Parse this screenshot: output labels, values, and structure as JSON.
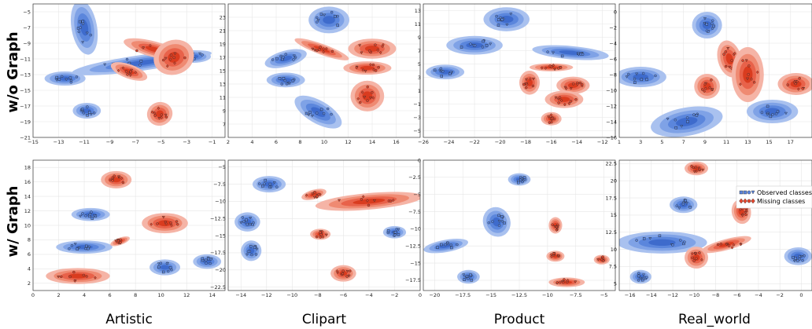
{
  "figure": {
    "row_labels": [
      "w/o Graph",
      "w/ Graph"
    ],
    "column_labels": [
      "Artistic",
      "Clipart",
      "Product",
      "Real_world"
    ],
    "legend": {
      "observed": "Observed classes",
      "missing": "Missing classes"
    },
    "colors": {
      "observed": "#4a78d8",
      "missing": "#e4472e",
      "grid": "#e6e6e6"
    }
  },
  "chart_data": [
    {
      "type": "scatter",
      "title": "",
      "row": "w/o Graph",
      "column": "Artistic",
      "xlim": [
        -15,
        0
      ],
      "ylim": [
        -21,
        -4
      ],
      "xticks": [
        -15,
        -13,
        -11,
        -9,
        -7,
        -5,
        -3,
        -1
      ],
      "yticks": [
        -21,
        -19,
        -17,
        -15,
        -13,
        -11,
        -9,
        -7,
        -5
      ],
      "series": [
        {
          "class": "observed",
          "clusters": [
            {
              "cx": -11,
              "cy": -7,
              "sx": 1.0,
              "sy": 3.5,
              "rot": -10
            },
            {
              "cx": -12.5,
              "cy": -13.5,
              "sx": 1.6,
              "sy": 0.9,
              "rot": 0
            },
            {
              "cx": -10.8,
              "cy": -17.6,
              "sx": 1.1,
              "sy": 1.0,
              "rot": 0
            },
            {
              "cx": -6.5,
              "cy": -11.5,
              "sx": 5.5,
              "sy": 1.0,
              "rot": -8
            },
            {
              "cx": -2.5,
              "cy": -10.7,
              "sx": 1.4,
              "sy": 0.8,
              "rot": 0
            }
          ]
        },
        {
          "class": "missing",
          "clusters": [
            {
              "cx": -5.5,
              "cy": -9.8,
              "sx": 2.5,
              "sy": 1.0,
              "rot": 15
            },
            {
              "cx": -7.5,
              "cy": -12.6,
              "sx": 1.5,
              "sy": 0.9,
              "rot": 20
            },
            {
              "cx": -4.0,
              "cy": -10.8,
              "sx": 1.6,
              "sy": 2.2,
              "rot": -20
            },
            {
              "cx": -5.1,
              "cy": -18.0,
              "sx": 1.0,
              "sy": 1.5,
              "rot": -15
            }
          ]
        }
      ]
    },
    {
      "type": "scatter",
      "title": "",
      "row": "w/o Graph",
      "column": "Clipart",
      "xlim": [
        2,
        18
      ],
      "ylim": [
        5,
        25
      ],
      "xticks": [
        2,
        4,
        6,
        8,
        10,
        12,
        14,
        16
      ],
      "yticks": [
        7,
        9,
        11,
        13,
        15,
        17,
        19,
        21,
        23
      ],
      "series": [
        {
          "class": "observed",
          "clusters": [
            {
              "cx": 10.4,
              "cy": 22.6,
              "sx": 1.7,
              "sy": 2.0,
              "rot": 0
            },
            {
              "cx": 6.8,
              "cy": 16.8,
              "sx": 1.8,
              "sy": 1.2,
              "rot": -15
            },
            {
              "cx": 6.8,
              "cy": 13.6,
              "sx": 1.6,
              "sy": 1.1,
              "rot": 0
            },
            {
              "cx": 9.5,
              "cy": 8.8,
              "sx": 2.2,
              "sy": 1.7,
              "rot": 30
            }
          ]
        },
        {
          "class": "missing",
          "clusters": [
            {
              "cx": 9.8,
              "cy": 18.2,
              "sx": 2.4,
              "sy": 0.8,
              "rot": 20
            },
            {
              "cx": 14.0,
              "cy": 18.3,
              "sx": 2.0,
              "sy": 1.5,
              "rot": 0
            },
            {
              "cx": 13.6,
              "cy": 15.4,
              "sx": 2.0,
              "sy": 1.0,
              "rot": 0
            },
            {
              "cx": 13.6,
              "cy": 11.2,
              "sx": 1.4,
              "sy": 2.3,
              "rot": 0
            }
          ]
        }
      ]
    },
    {
      "type": "scatter",
      "title": "",
      "row": "w/o Graph",
      "column": "Product",
      "xlim": [
        -26,
        -11
      ],
      "ylim": [
        -6,
        14
      ],
      "xticks": [
        -26,
        -24,
        -22,
        -20,
        -18,
        -16,
        -14,
        -12
      ],
      "yticks": [
        -5,
        -3,
        -1,
        1,
        3,
        5,
        7,
        9,
        11,
        13
      ],
      "series": [
        {
          "class": "observed",
          "clusters": [
            {
              "cx": -19.5,
              "cy": 11.7,
              "sx": 1.8,
              "sy": 1.8,
              "rot": 0
            },
            {
              "cx": -22.0,
              "cy": 7.8,
              "sx": 2.2,
              "sy": 1.4,
              "rot": 0
            },
            {
              "cx": -24.3,
              "cy": 3.8,
              "sx": 1.5,
              "sy": 1.1,
              "rot": 0
            },
            {
              "cx": -14.5,
              "cy": 6.7,
              "sx": 3.0,
              "sy": 1.0,
              "rot": 5
            }
          ]
        },
        {
          "class": "missing",
          "clusters": [
            {
              "cx": -17.7,
              "cy": 2.2,
              "sx": 0.8,
              "sy": 1.8,
              "rot": 0
            },
            {
              "cx": -16.0,
              "cy": 4.5,
              "sx": 1.7,
              "sy": 0.6,
              "rot": 0
            },
            {
              "cx": -14.3,
              "cy": 1.8,
              "sx": 1.3,
              "sy": 1.3,
              "rot": 0
            },
            {
              "cx": -15.0,
              "cy": -0.3,
              "sx": 1.5,
              "sy": 1.3,
              "rot": 0
            },
            {
              "cx": -16.0,
              "cy": -3.2,
              "sx": 0.8,
              "sy": 1.0,
              "rot": 0
            }
          ]
        }
      ]
    },
    {
      "type": "scatter",
      "title": "",
      "row": "w/o Graph",
      "column": "Real_world",
      "xlim": [
        1,
        19
      ],
      "ylim": [
        -16,
        1
      ],
      "xticks": [
        1,
        3,
        5,
        7,
        9,
        11,
        13,
        15,
        17
      ],
      "yticks": [
        -16,
        -14,
        -12,
        -10,
        -8,
        -6,
        -4,
        -2,
        0
      ],
      "series": [
        {
          "class": "observed",
          "clusters": [
            {
              "cx": 9.2,
              "cy": -1.7,
              "sx": 1.4,
              "sy": 1.7,
              "rot": 0
            },
            {
              "cx": 3.0,
              "cy": -8.3,
              "sx": 2.4,
              "sy": 1.3,
              "rot": 0
            },
            {
              "cx": 7.3,
              "cy": -14.0,
              "sx": 3.4,
              "sy": 1.8,
              "rot": -10
            },
            {
              "cx": 15.3,
              "cy": -12.7,
              "sx": 2.4,
              "sy": 1.5,
              "rot": 0
            }
          ]
        },
        {
          "class": "missing",
          "clusters": [
            {
              "cx": 9.2,
              "cy": -9.5,
              "sx": 1.2,
              "sy": 1.6,
              "rot": 0
            },
            {
              "cx": 11.3,
              "cy": -6.0,
              "sx": 1.1,
              "sy": 2.4,
              "rot": -15
            },
            {
              "cx": 13.0,
              "cy": -8.0,
              "sx": 1.5,
              "sy": 3.5,
              "rot": 0
            },
            {
              "cx": 17.5,
              "cy": -9.2,
              "sx": 1.7,
              "sy": 1.4,
              "rot": 0
            }
          ]
        }
      ]
    },
    {
      "type": "scatter",
      "title": "",
      "row": "w/ Graph",
      "column": "Artistic",
      "xlim": [
        0,
        15
      ],
      "ylim": [
        1,
        19
      ],
      "xticks": [
        0,
        2,
        4,
        6,
        8,
        10,
        12,
        14
      ],
      "yticks": [
        2,
        4,
        6,
        8,
        10,
        12,
        14,
        16,
        18
      ],
      "series": [
        {
          "class": "observed",
          "clusters": [
            {
              "cx": 4.5,
              "cy": 11.5,
              "sx": 1.5,
              "sy": 0.9,
              "rot": 0
            },
            {
              "cx": 4.0,
              "cy": 7.0,
              "sx": 2.2,
              "sy": 0.9,
              "rot": 0
            },
            {
              "cx": 10.3,
              "cy": 4.2,
              "sx": 1.2,
              "sy": 1.1,
              "rot": 0
            },
            {
              "cx": 13.6,
              "cy": 5.0,
              "sx": 1.1,
              "sy": 1.0,
              "rot": 0
            }
          ]
        },
        {
          "class": "missing",
          "clusters": [
            {
              "cx": 6.5,
              "cy": 16.3,
              "sx": 1.2,
              "sy": 1.2,
              "rot": 0
            },
            {
              "cx": 10.3,
              "cy": 10.3,
              "sx": 1.8,
              "sy": 1.4,
              "rot": 0
            },
            {
              "cx": 6.8,
              "cy": 7.8,
              "sx": 0.8,
              "sy": 0.5,
              "rot": -20
            },
            {
              "cx": 3.5,
              "cy": 3.0,
              "sx": 2.5,
              "sy": 1.1,
              "rot": 0
            }
          ]
        }
      ]
    },
    {
      "type": "scatter",
      "title": "",
      "row": "w/ Graph",
      "column": "Clipart",
      "xlim": [
        -15,
        0
      ],
      "ylim": [
        -23,
        -4
      ],
      "xticks": [
        -14,
        -12,
        -10,
        -8,
        -6,
        -4,
        -2,
        0
      ],
      "yticks": [
        -22.5,
        -20.0,
        -17.5,
        -15.0,
        -12.5,
        -10.0,
        -7.5,
        -5.0
      ],
      "series": [
        {
          "class": "observed",
          "clusters": [
            {
              "cx": -11.8,
              "cy": -7.5,
              "sx": 1.3,
              "sy": 1.2,
              "rot": 0
            },
            {
              "cx": -13.5,
              "cy": -13.0,
              "sx": 1.0,
              "sy": 1.4,
              "rot": 0
            },
            {
              "cx": -13.2,
              "cy": -17.2,
              "sx": 0.8,
              "sy": 1.5,
              "rot": 20
            },
            {
              "cx": -2.0,
              "cy": -14.5,
              "sx": 0.9,
              "sy": 0.9,
              "rot": 0
            }
          ]
        },
        {
          "class": "missing",
          "clusters": [
            {
              "cx": -8.3,
              "cy": -9.0,
              "sx": 1.0,
              "sy": 0.7,
              "rot": -15
            },
            {
              "cx": -4.0,
              "cy": -10.0,
              "sx": 4.2,
              "sy": 1.2,
              "rot": -5
            },
            {
              "cx": -7.8,
              "cy": -14.8,
              "sx": 0.8,
              "sy": 0.8,
              "rot": 0
            },
            {
              "cx": -6.0,
              "cy": -20.5,
              "sx": 1.0,
              "sy": 1.2,
              "rot": 0
            }
          ]
        }
      ]
    },
    {
      "type": "scatter",
      "title": "",
      "row": "w/ Graph",
      "column": "Product",
      "xlim": [
        -21,
        -4
      ],
      "ylim": [
        -19,
        0
      ],
      "xticks": [
        -20.0,
        -17.5,
        -15.0,
        -12.5,
        -10.0,
        -7.5,
        -5.0
      ],
      "yticks": [
        -17.5,
        -15.0,
        -12.5,
        -10.0,
        -7.5,
        -5.0,
        -2.5,
        0.0
      ],
      "series": [
        {
          "class": "observed",
          "clusters": [
            {
              "cx": -12.5,
              "cy": -2.8,
              "sx": 1.0,
              "sy": 0.9,
              "rot": 0
            },
            {
              "cx": -14.5,
              "cy": -9.0,
              "sx": 1.2,
              "sy": 2.2,
              "rot": -25
            },
            {
              "cx": -19.0,
              "cy": -12.5,
              "sx": 2.0,
              "sy": 0.9,
              "rot": -10
            },
            {
              "cx": -17.0,
              "cy": -17.0,
              "sx": 1.0,
              "sy": 1.0,
              "rot": 0
            }
          ]
        },
        {
          "class": "missing",
          "clusters": [
            {
              "cx": -9.3,
              "cy": -9.5,
              "sx": 0.6,
              "sy": 1.2,
              "rot": 0
            },
            {
              "cx": -9.3,
              "cy": -14.0,
              "sx": 0.8,
              "sy": 0.8,
              "rot": 0
            },
            {
              "cx": -5.2,
              "cy": -14.5,
              "sx": 0.7,
              "sy": 0.7,
              "rot": 0
            },
            {
              "cx": -8.3,
              "cy": -17.8,
              "sx": 1.6,
              "sy": 0.7,
              "rot": 0
            }
          ]
        }
      ]
    },
    {
      "type": "scatter",
      "title": "",
      "row": "w/ Graph",
      "column": "Real_world",
      "xlim": [
        -17,
        1
      ],
      "ylim": [
        4,
        23
      ],
      "xticks": [
        -16,
        -14,
        -12,
        -10,
        -8,
        -6,
        -4,
        -2,
        0
      ],
      "yticks": [
        5.0,
        7.5,
        10.0,
        12.5,
        15.0,
        17.5,
        20.0,
        22.5
      ],
      "series": [
        {
          "class": "observed",
          "clusters": [
            {
              "cx": -11.0,
              "cy": 16.5,
              "sx": 1.3,
              "sy": 1.2,
              "rot": 0
            },
            {
              "cx": -13.0,
              "cy": 11.0,
              "sx": 4.2,
              "sy": 1.6,
              "rot": 0
            },
            {
              "cx": -15.0,
              "cy": 6.0,
              "sx": 1.0,
              "sy": 1.0,
              "rot": 0
            },
            {
              "cx": -0.3,
              "cy": 9.0,
              "sx": 1.3,
              "sy": 1.3,
              "rot": 0
            }
          ]
        },
        {
          "class": "missing",
          "clusters": [
            {
              "cx": -9.8,
              "cy": 21.8,
              "sx": 1.1,
              "sy": 1.0,
              "rot": 0
            },
            {
              "cx": -5.6,
              "cy": 15.5,
              "sx": 0.9,
              "sy": 1.8,
              "rot": -10
            },
            {
              "cx": -7.0,
              "cy": 10.7,
              "sx": 2.4,
              "sy": 0.8,
              "rot": -15
            },
            {
              "cx": -9.8,
              "cy": 8.8,
              "sx": 1.1,
              "sy": 1.6,
              "rot": 0
            }
          ]
        }
      ]
    }
  ]
}
